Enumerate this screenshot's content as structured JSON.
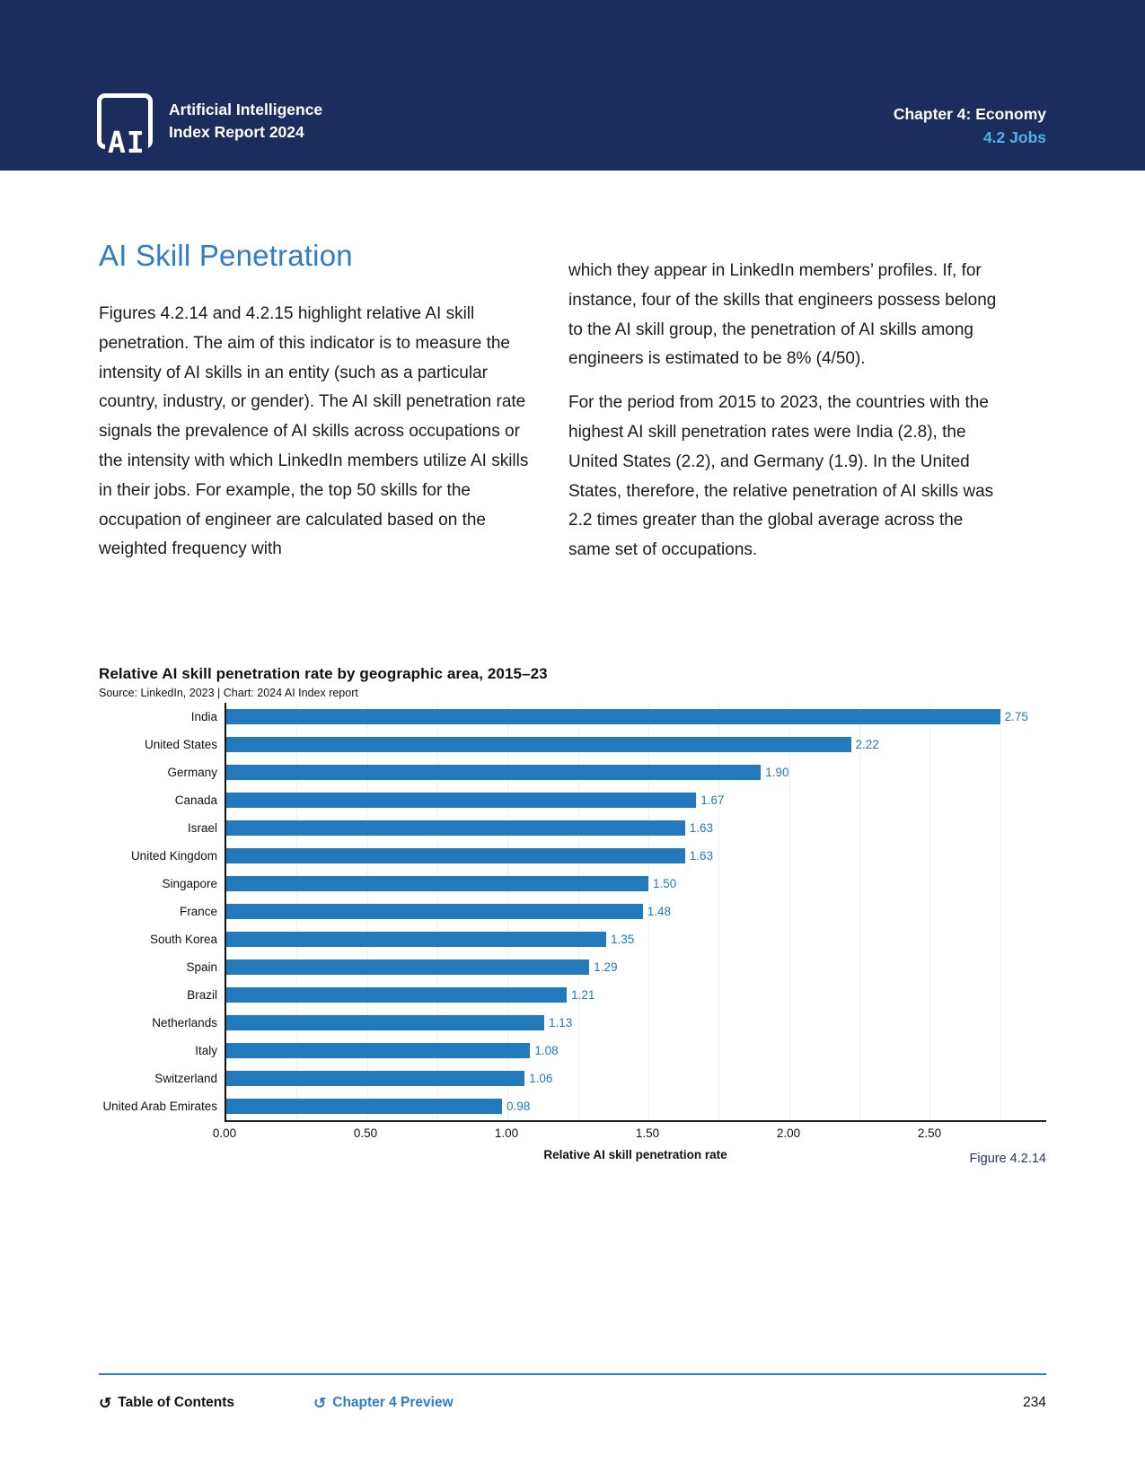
{
  "header": {
    "logo_mark": "AI",
    "brand_line1": "Artificial Intelligence",
    "brand_line2": "Index Report 2024",
    "chapter": "Chapter 4: Economy",
    "section": "4.2 Jobs"
  },
  "article": {
    "title": "AI Skill Penetration",
    "left_paragraph": "Figures 4.2.14 and 4.2.15 highlight relative AI skill penetration. The aim of this indicator is to measure the intensity of AI skills in an entity (such as a particular country, industry, or gender). The AI skill penetration rate signals the prevalence of AI skills across occupations or the intensity with which LinkedIn members utilize AI skills in their jobs. For example, the top 50 skills for the occupation of engineer are calculated based on the weighted frequency with",
    "right_paragraph_1": "which they appear in LinkedIn members’ profiles. If, for instance, four of the skills that engineers possess belong to the AI skill group, the penetration of AI skills among engineers is estimated to be 8% (4/50).",
    "right_paragraph_2": "For the period from 2015 to 2023, the countries with the highest AI skill penetration rates were India (2.8), the United States (2.2), and Germany (1.9). In the United States, therefore, the relative penetration of AI skills was 2.2 times greater than the global average across the same set of occupations."
  },
  "chart_data": {
    "type": "bar",
    "orientation": "horizontal",
    "title": "Relative AI skill penetration rate by geographic area, 2015–23",
    "source": "Source: LinkedIn, 2023 | Chart: 2024 AI Index report",
    "figure_label": "Figure 4.2.14",
    "xlabel": "Relative AI skill penetration rate",
    "ylabel": "",
    "categories": [
      "India",
      "United States",
      "Germany",
      "Canada",
      "Israel",
      "United Kingdom",
      "Singapore",
      "France",
      "South Korea",
      "Spain",
      "Brazil",
      "Netherlands",
      "Italy",
      "Switzerland",
      "United Arab Emirates"
    ],
    "values": [
      2.75,
      2.22,
      1.9,
      1.67,
      1.63,
      1.63,
      1.5,
      1.48,
      1.35,
      1.29,
      1.21,
      1.13,
      1.08,
      1.06,
      0.98
    ],
    "xlim": [
      0,
      2.914
    ],
    "xticks": [
      "0.00",
      "0.50",
      "1.00",
      "1.50",
      "2.00",
      "2.50"
    ],
    "grid": "vertical-light, every 0.25",
    "legend": "none",
    "bar_color": "#2279bc",
    "value_label_color": "#2279bc"
  },
  "footer": {
    "undo_icon": "↺",
    "toc_label": "Table of Contents",
    "preview_label": "Chapter 4 Preview",
    "page_number": "234"
  },
  "colors": {
    "header_navy": "#1a2d5c",
    "section_light_blue": "#52b1e6",
    "heading_blue": "#2e7dc6",
    "bar_blue": "#2279bc",
    "figure_label_navy": "#25355e",
    "footer_rule_blue": "#2e7dc6"
  }
}
